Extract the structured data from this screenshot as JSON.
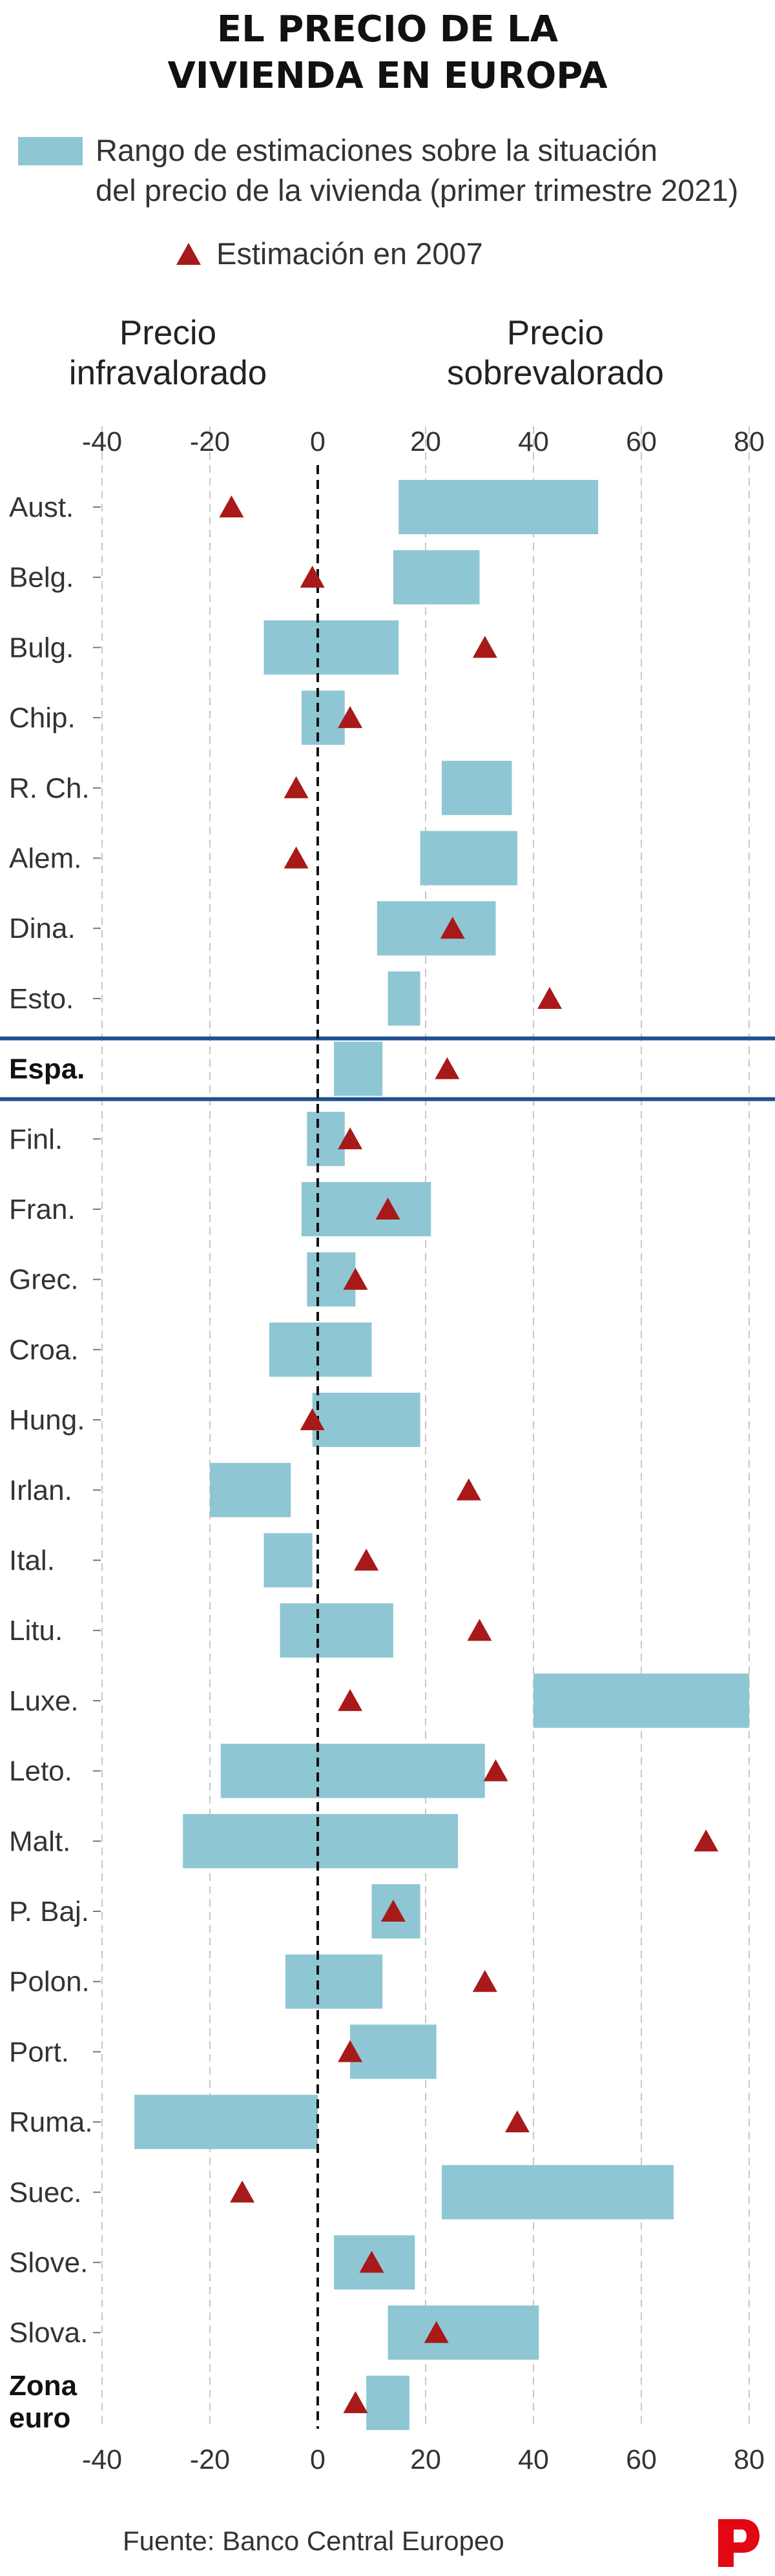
{
  "header": {
    "title_line1": "EL PRECIO DE LA",
    "title_line2": "VIVIENDA EN EUROPA",
    "legend_range_line1": "Rango de estimaciones sobre la situación",
    "legend_range_line2": "del precio de la vivienda (primer trimestre 2021)",
    "legend_2007": "Estimación en 2007"
  },
  "labels": {
    "left_line1": "Precio",
    "left_line2": "infravalorado",
    "right_line1": "Precio",
    "right_line2": "sobrevalorado"
  },
  "footer": {
    "source": "Fuente: Banco Central Europeo",
    "logo_icon": "publico-p-logo-icon"
  },
  "colors": {
    "bar": "#8fc6d4",
    "marker": "#a81919",
    "highlight_line": "#1f4f8f",
    "grid": "#c8c8c8"
  },
  "chart_data": {
    "type": "range-bar",
    "title": "EL PRECIO DE LA VIVIENDA EN EUROPA",
    "x_ticks": [
      -40,
      -20,
      0,
      20,
      40,
      60,
      80
    ],
    "x_tick_labels": [
      "-40",
      "-20",
      "0",
      "20",
      "40",
      "60",
      "80"
    ],
    "xlim": [
      -45,
      82
    ],
    "zero_line": "dashed",
    "highlight_category": "Espa.",
    "series": [
      {
        "name": "Rango de estimaciones sobre la situación del precio de la vivienda (primer trimestre 2021)",
        "kind": "range"
      },
      {
        "name": "Estimación en 2007",
        "kind": "marker"
      }
    ],
    "rows": [
      {
        "category": "Aust.",
        "low": 15,
        "high": 52,
        "est2007": -16
      },
      {
        "category": "Belg.",
        "low": 14,
        "high": 30,
        "est2007": -1
      },
      {
        "category": "Bulg.",
        "low": -10,
        "high": 15,
        "est2007": 31
      },
      {
        "category": "Chip.",
        "low": -3,
        "high": 5,
        "est2007": 6
      },
      {
        "category": "R. Ch.",
        "low": 23,
        "high": 36,
        "est2007": -4
      },
      {
        "category": "Alem.",
        "low": 19,
        "high": 37,
        "est2007": -4
      },
      {
        "category": "Dina.",
        "low": 11,
        "high": 33,
        "est2007": 25
      },
      {
        "category": "Esto.",
        "low": 13,
        "high": 19,
        "est2007": 43
      },
      {
        "category": "Espa.",
        "low": 3,
        "high": 12,
        "est2007": 24
      },
      {
        "category": "Finl.",
        "low": -2,
        "high": 5,
        "est2007": 6
      },
      {
        "category": "Fran.",
        "low": -3,
        "high": 21,
        "est2007": 13
      },
      {
        "category": "Grec.",
        "low": -2,
        "high": 7,
        "est2007": 7
      },
      {
        "category": "Croa.",
        "low": -9,
        "high": 10,
        "est2007": null
      },
      {
        "category": "Hung.",
        "low": -1,
        "high": 19,
        "est2007": -1
      },
      {
        "category": "Irlan.",
        "low": -20,
        "high": -5,
        "est2007": 28
      },
      {
        "category": "Ital.",
        "low": -10,
        "high": -1,
        "est2007": 9
      },
      {
        "category": "Litu.",
        "low": -7,
        "high": 14,
        "est2007": 30
      },
      {
        "category": "Luxe.",
        "low": 40,
        "high": 80,
        "est2007": 6
      },
      {
        "category": "Leto.",
        "low": -18,
        "high": 31,
        "est2007": 33
      },
      {
        "category": "Malt.",
        "low": -25,
        "high": 26,
        "est2007": 72
      },
      {
        "category": "P. Baj.",
        "low": 10,
        "high": 19,
        "est2007": 14
      },
      {
        "category": "Polon.",
        "low": -6,
        "high": 12,
        "est2007": 31
      },
      {
        "category": "Port.",
        "low": 6,
        "high": 22,
        "est2007": 6
      },
      {
        "category": "Ruma.",
        "low": -34,
        "high": 0,
        "est2007": 37
      },
      {
        "category": "Suec.",
        "low": 23,
        "high": 66,
        "est2007": -14
      },
      {
        "category": "Slove.",
        "low": 3,
        "high": 18,
        "est2007": 10
      },
      {
        "category": "Slova.",
        "low": 13,
        "high": 41,
        "est2007": 22
      },
      {
        "category": "Zona euro",
        "low": 9,
        "high": 17,
        "est2007": 7
      }
    ]
  }
}
